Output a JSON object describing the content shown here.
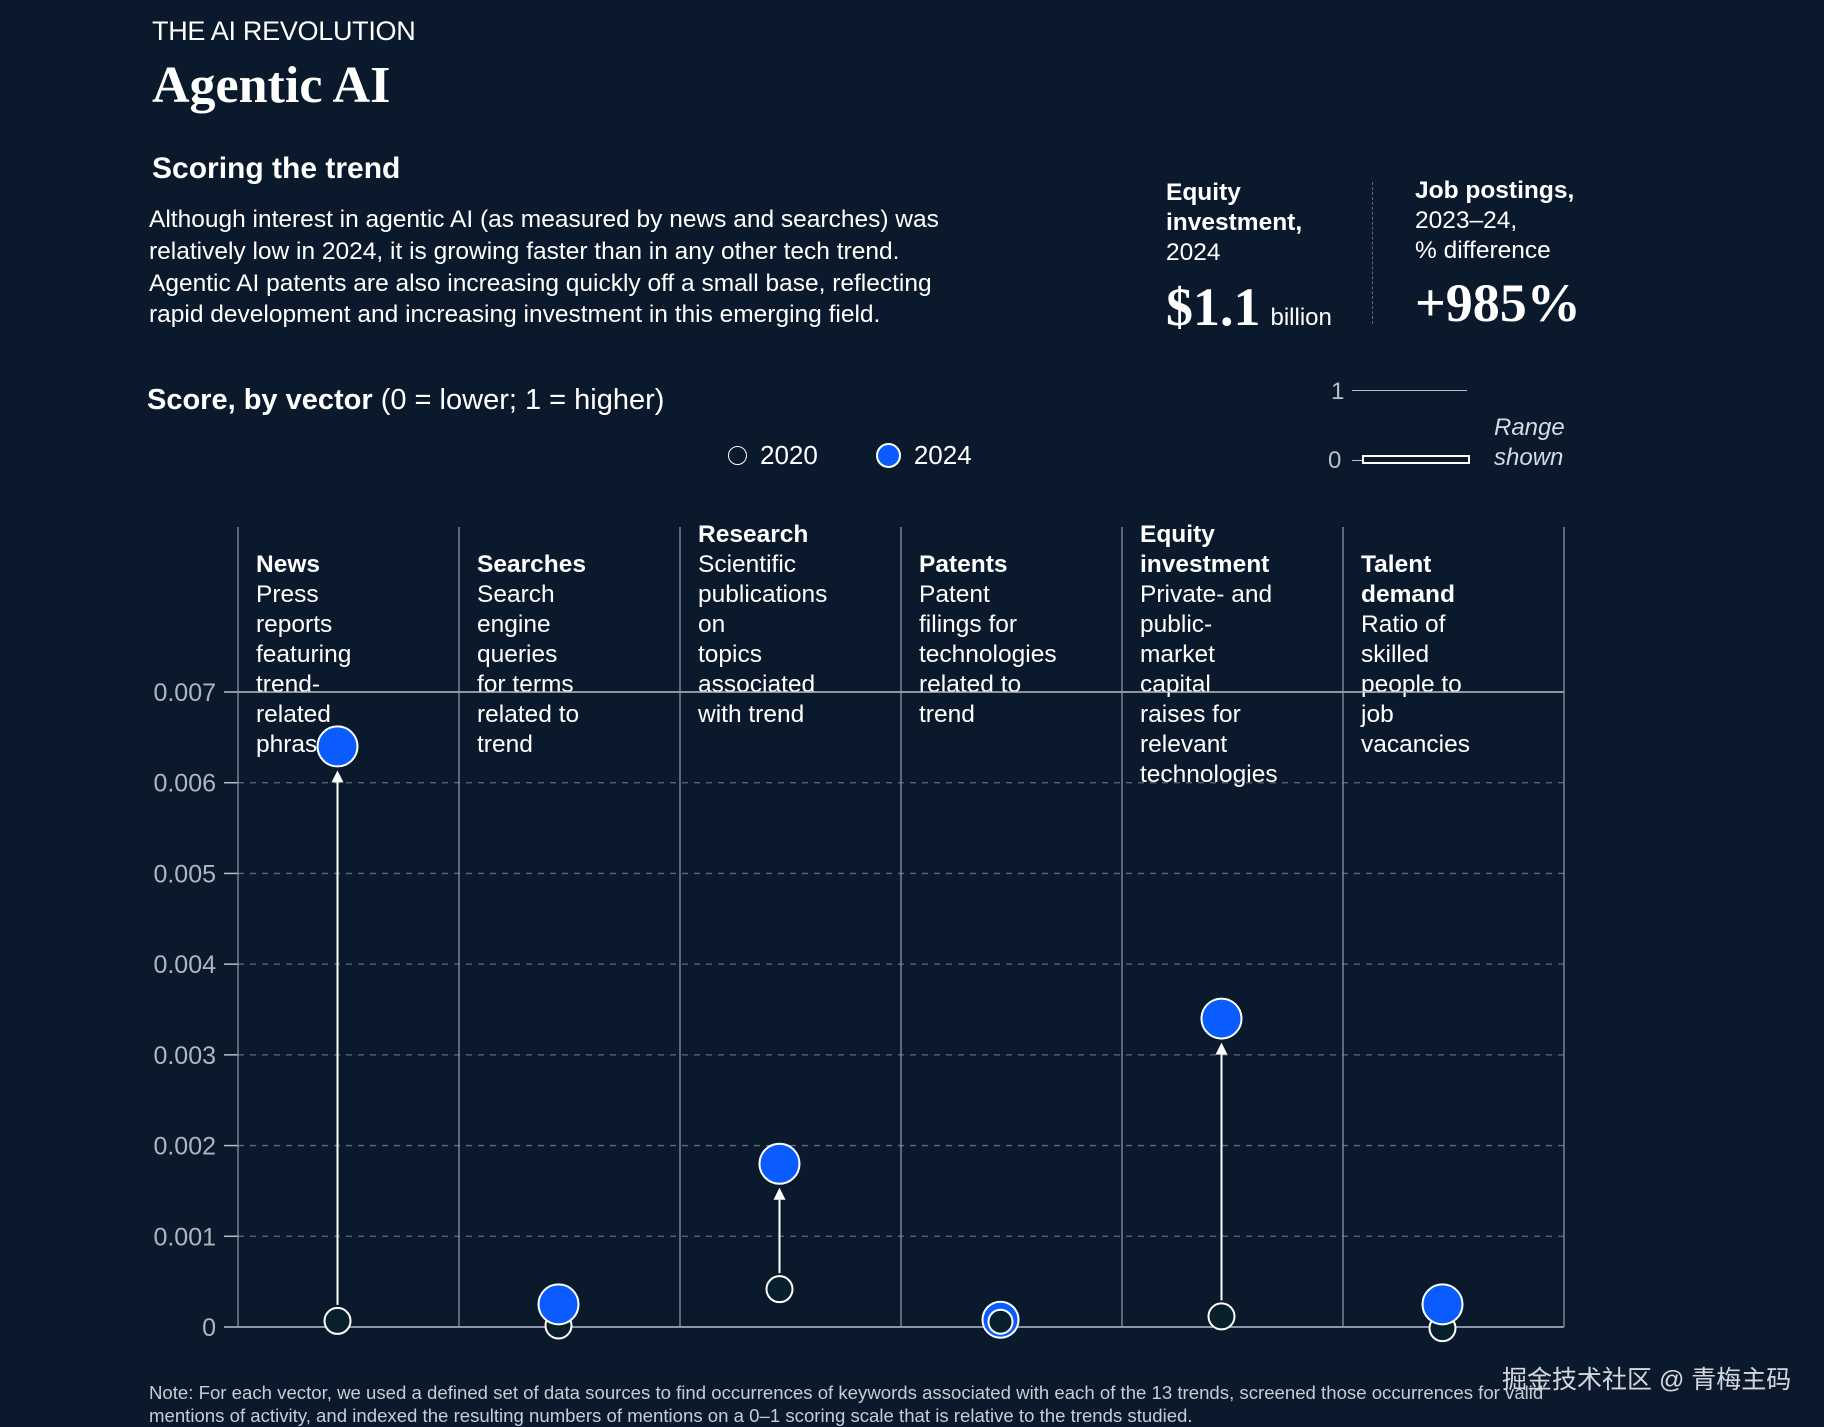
{
  "header": {
    "eyebrow": "THE AI REVOLUTION",
    "title": "Agentic AI",
    "subhead": "Scoring the trend",
    "description": "Although interest in agentic AI (as measured by news and searches) was relatively low in 2024, it is growing faster than in any other tech trend. Agentic AI patents are also increasing quickly off a small base, reflecting rapid development and increasing investment in this emerging field."
  },
  "stats": [
    {
      "label_bold_1": "Equity",
      "label_bold_2": "investment,",
      "label_rest": "2024",
      "value": "$1.1",
      "unit": "billion"
    },
    {
      "label_bold_1": "Job postings,",
      "label_line_2": "2023–24,",
      "label_line_3": "% difference",
      "value": "+985%"
    }
  ],
  "range_legend": {
    "top_tick": "1",
    "bottom_tick": "0",
    "text_1": "Range",
    "text_2": "shown"
  },
  "score_title": {
    "bold": "Score, by vector",
    "rest": " (0 = lower; 1 = higher)"
  },
  "colors": {
    "background": "#0a1a2c",
    "accent_2024": "#0a5cff",
    "grid": "#5b6b7c",
    "axis_text": "#aeb7c0"
  },
  "chart_data": {
    "type": "scatter",
    "title": "Score, by vector (0 = lower; 1 = higher)",
    "xlabel": "",
    "ylabel": "",
    "ylim": [
      0,
      0.007
    ],
    "yticks": [
      0,
      0.001,
      0.002,
      0.003,
      0.004,
      0.005,
      0.006,
      0.007
    ],
    "ytick_labels": [
      "0",
      "0.001",
      "0.002",
      "0.003",
      "0.004",
      "0.005",
      "0.006",
      "0.007"
    ],
    "grid": true,
    "legend": [
      {
        "name": "2020",
        "style": "open-circle"
      },
      {
        "name": "2024",
        "style": "filled-blue-circle"
      }
    ],
    "legend_position": "top-center",
    "categories": [
      "News",
      "Searches",
      "Research",
      "Patents",
      "Equity investment",
      "Talent demand"
    ],
    "category_descriptions": [
      [
        "Press reports",
        "featuring trend-",
        "related phrases"
      ],
      [
        "Search engine",
        "queries for terms",
        "related to trend"
      ],
      [
        "Scientific",
        "publications on",
        "topics associated",
        "with trend"
      ],
      [
        "Patent filings for",
        "technologies",
        "related to trend"
      ],
      [
        "Private- and public-",
        "market capital",
        "raises for relevant",
        "technologies"
      ],
      [
        "Ratio of skilled",
        "people to job",
        "vacancies"
      ]
    ],
    "series": [
      {
        "name": "2020",
        "values": [
          0.0001,
          5e-05,
          0.00045,
          7e-05,
          0.00015,
          2e-05
        ]
      },
      {
        "name": "2024",
        "values": [
          0.0064,
          0.00025,
          0.0018,
          8e-05,
          0.0034,
          0.00025
        ]
      }
    ],
    "arrows": [
      true,
      false,
      true,
      false,
      true,
      false
    ]
  },
  "note": "Note: For each vector, we used a defined set of data sources to find occurrences of keywords associated with each of the 13 trends, screened those occurrences for valid mentions of activity, and indexed the resulting numbers of mentions on a 0–1 scoring scale that is relative to the trends studied.",
  "watermark": "掘金技术社区 @ 青梅主码"
}
